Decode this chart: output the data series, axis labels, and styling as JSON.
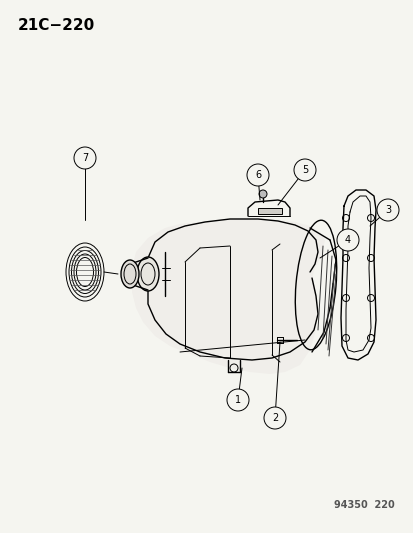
{
  "title": "21C−220",
  "watermark": "94350  220",
  "background_color": "#f5f5f0",
  "text_color": "#000000",
  "line_color": "#000000",
  "fig_width": 4.14,
  "fig_height": 5.33,
  "dpi": 100
}
